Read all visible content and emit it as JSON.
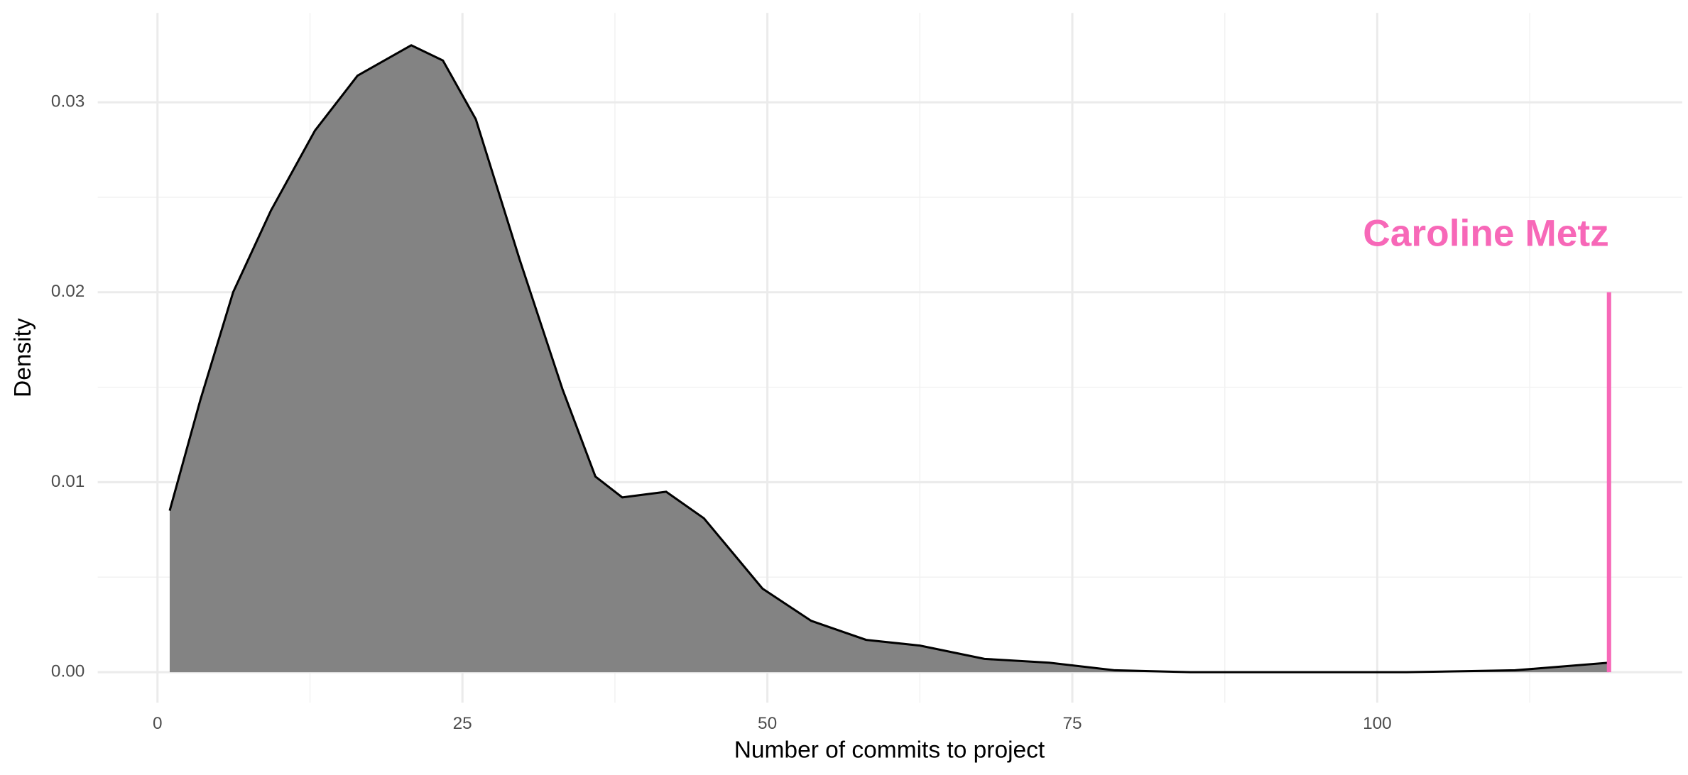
{
  "chart_data": {
    "type": "area",
    "x_label": "Number of commits to project",
    "y_label": "Density",
    "x": [
      1,
      3.5,
      6.2,
      9.3,
      12.9,
      16.4,
      20.8,
      23.4,
      26.1,
      29.7,
      33.2,
      35.9,
      38.1,
      41.7,
      44.8,
      49.6,
      53.6,
      58.1,
      62.5,
      67.8,
      73.1,
      78.5,
      84.7,
      102.4,
      111.3,
      119
    ],
    "values": [
      0.0085,
      0.0143,
      0.02,
      0.0243,
      0.0285,
      0.0314,
      0.033,
      0.0322,
      0.0291,
      0.0217,
      0.0149,
      0.0103,
      0.0092,
      0.0095,
      0.0081,
      0.0044,
      0.0027,
      0.0017,
      0.0014,
      0.0007,
      0.0005,
      0.0001,
      0,
      0,
      0.0001,
      0.0005
    ],
    "color": "#7f7f7f",
    "line_color": "#000000",
    "xlim": [
      -4.9,
      125
    ],
    "ylim": [
      -0.0016,
      0.0347
    ],
    "xticks": [
      0,
      25,
      50,
      75,
      100
    ],
    "yticks": [
      {
        "value": 0,
        "label": "0.00"
      },
      0.01,
      0.02,
      0.03
    ],
    "grid": true,
    "annotation": {
      "text": "Caroline Metz",
      "x": 119,
      "y0": 0,
      "y1": 0.02,
      "color": "#f768b8"
    }
  }
}
